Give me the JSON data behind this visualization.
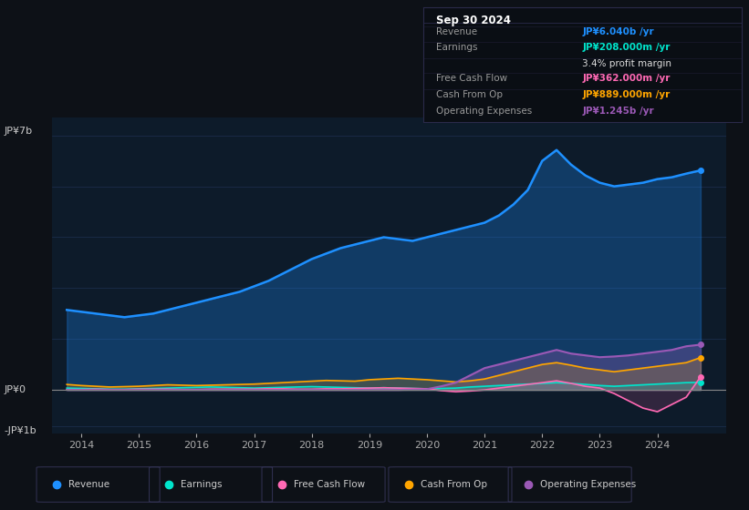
{
  "bg_color": "#0d1117",
  "plot_bg_color": "#0d1b2a",
  "grid_color": "#1e3050",
  "ylim": [
    -1200000000.0,
    7500000000.0
  ],
  "xlim": [
    2013.5,
    2025.2
  ],
  "xtick_years": [
    2014,
    2015,
    2016,
    2017,
    2018,
    2019,
    2020,
    2021,
    2022,
    2023,
    2024
  ],
  "legend_items": [
    {
      "label": "Revenue",
      "color": "#1e90ff"
    },
    {
      "label": "Earnings",
      "color": "#00e5cc"
    },
    {
      "label": "Free Cash Flow",
      "color": "#ff69b4"
    },
    {
      "label": "Cash From Op",
      "color": "#ffa500"
    },
    {
      "label": "Operating Expenses",
      "color": "#9b59b6"
    }
  ],
  "info_box": {
    "title": "Sep 30 2024",
    "rows": [
      {
        "label": "Revenue",
        "value": "JP¥6.040b /yr",
        "value_color": "#1e90ff"
      },
      {
        "label": "Earnings",
        "value": "JP¥208.000m /yr",
        "value_color": "#00e5cc"
      },
      {
        "label": "",
        "value": "3.4% profit margin",
        "value_color": "#dddddd"
      },
      {
        "label": "Free Cash Flow",
        "value": "JP¥362.000m /yr",
        "value_color": "#ff69b4"
      },
      {
        "label": "Cash From Op",
        "value": "JP¥889.000m /yr",
        "value_color": "#ffa500"
      },
      {
        "label": "Operating Expenses",
        "value": "JP¥1.245b /yr",
        "value_color": "#9b59b6"
      }
    ]
  },
  "revenue": {
    "color": "#1e90ff",
    "x": [
      2013.75,
      2014.0,
      2014.25,
      2014.5,
      2014.75,
      2015.0,
      2015.25,
      2015.5,
      2015.75,
      2016.0,
      2016.25,
      2016.5,
      2016.75,
      2017.0,
      2017.25,
      2017.5,
      2017.75,
      2018.0,
      2018.25,
      2018.5,
      2018.75,
      2019.0,
      2019.25,
      2019.5,
      2019.75,
      2020.0,
      2020.25,
      2020.5,
      2020.75,
      2021.0,
      2021.25,
      2021.5,
      2021.75,
      2022.0,
      2022.25,
      2022.5,
      2022.75,
      2023.0,
      2023.25,
      2023.5,
      2023.75,
      2024.0,
      2024.25,
      2024.5,
      2024.75
    ],
    "y": [
      2200000000.0,
      2150000000.0,
      2100000000.0,
      2050000000.0,
      2000000000.0,
      2050000000.0,
      2100000000.0,
      2200000000.0,
      2300000000.0,
      2400000000.0,
      2500000000.0,
      2600000000.0,
      2700000000.0,
      2850000000.0,
      3000000000.0,
      3200000000.0,
      3400000000.0,
      3600000000.0,
      3750000000.0,
      3900000000.0,
      4000000000.0,
      4100000000.0,
      4200000000.0,
      4150000000.0,
      4100000000.0,
      4200000000.0,
      4300000000.0,
      4400000000.0,
      4500000000.0,
      4600000000.0,
      4800000000.0,
      5100000000.0,
      5500000000.0,
      6300000000.0,
      6600000000.0,
      6200000000.0,
      5900000000.0,
      5700000000.0,
      5600000000.0,
      5650000000.0,
      5700000000.0,
      5800000000.0,
      5850000000.0,
      5950000000.0,
      6040000000.0
    ]
  },
  "earnings": {
    "color": "#00e5cc",
    "x": [
      2013.75,
      2014.0,
      2014.25,
      2014.5,
      2014.75,
      2015.0,
      2015.25,
      2015.5,
      2015.75,
      2016.0,
      2016.25,
      2016.5,
      2016.75,
      2017.0,
      2017.25,
      2017.5,
      2017.75,
      2018.0,
      2018.25,
      2018.5,
      2018.75,
      2019.0,
      2019.25,
      2019.5,
      2019.75,
      2020.0,
      2020.25,
      2020.5,
      2020.75,
      2021.0,
      2021.25,
      2021.5,
      2021.75,
      2022.0,
      2022.25,
      2022.5,
      2022.75,
      2023.0,
      2023.25,
      2023.5,
      2023.75,
      2024.0,
      2024.25,
      2024.5,
      2024.75
    ],
    "y": [
      50000000.0,
      40000000.0,
      30000000.0,
      20000000.0,
      20000000.0,
      30000000.0,
      40000000.0,
      50000000.0,
      60000000.0,
      70000000.0,
      80000000.0,
      70000000.0,
      60000000.0,
      50000000.0,
      60000000.0,
      70000000.0,
      80000000.0,
      90000000.0,
      80000000.0,
      70000000.0,
      60000000.0,
      50000000.0,
      60000000.0,
      50000000.0,
      40000000.0,
      30000000.0,
      40000000.0,
      50000000.0,
      80000000.0,
      100000000.0,
      120000000.0,
      140000000.0,
      160000000.0,
      180000000.0,
      200000000.0,
      180000000.0,
      150000000.0,
      120000000.0,
      100000000.0,
      120000000.0,
      140000000.0,
      160000000.0,
      180000000.0,
      200000000.0,
      208000000.0
    ]
  },
  "free_cash_flow": {
    "color": "#ff69b4",
    "x": [
      2013.75,
      2014.0,
      2014.25,
      2014.5,
      2014.75,
      2015.0,
      2015.25,
      2015.5,
      2015.75,
      2016.0,
      2016.25,
      2016.5,
      2016.75,
      2017.0,
      2017.25,
      2017.5,
      2017.75,
      2018.0,
      2018.25,
      2018.5,
      2018.75,
      2019.0,
      2019.25,
      2019.5,
      2019.75,
      2020.0,
      2020.25,
      2020.5,
      2020.75,
      2021.0,
      2021.25,
      2021.5,
      2021.75,
      2022.0,
      2022.25,
      2022.5,
      2022.75,
      2023.0,
      2023.25,
      2023.5,
      2023.75,
      2024.0,
      2024.25,
      2024.5,
      2024.75
    ],
    "y": [
      10000000.0,
      10000000.0,
      20000000.0,
      10000000.0,
      10000000.0,
      20000000.0,
      20000000.0,
      20000000.0,
      10000000.0,
      10000000.0,
      20000000.0,
      20000000.0,
      20000000.0,
      20000000.0,
      30000000.0,
      30000000.0,
      20000000.0,
      20000000.0,
      30000000.0,
      30000000.0,
      40000000.0,
      50000000.0,
      60000000.0,
      50000000.0,
      40000000.0,
      30000000.0,
      -20000000.0,
      -50000000.0,
      -30000000.0,
      0.0,
      50000000.0,
      100000000.0,
      150000000.0,
      200000000.0,
      250000000.0,
      180000000.0,
      100000000.0,
      50000000.0,
      -100000000.0,
      -300000000.0,
      -500000000.0,
      -600000000.0,
      -400000000.0,
      -200000000.0,
      362000000.0
    ]
  },
  "cash_from_op": {
    "color": "#ffa500",
    "x": [
      2013.75,
      2014.0,
      2014.25,
      2014.5,
      2014.75,
      2015.0,
      2015.25,
      2015.5,
      2015.75,
      2016.0,
      2016.25,
      2016.5,
      2016.75,
      2017.0,
      2017.25,
      2017.5,
      2017.75,
      2018.0,
      2018.25,
      2018.5,
      2018.75,
      2019.0,
      2019.25,
      2019.5,
      2019.75,
      2020.0,
      2020.25,
      2020.5,
      2020.75,
      2021.0,
      2021.25,
      2021.5,
      2021.75,
      2022.0,
      2022.25,
      2022.5,
      2022.75,
      2023.0,
      2023.25,
      2023.5,
      2023.75,
      2024.0,
      2024.25,
      2024.5,
      2024.75
    ],
    "y": [
      150000000.0,
      120000000.0,
      100000000.0,
      80000000.0,
      90000000.0,
      100000000.0,
      120000000.0,
      140000000.0,
      130000000.0,
      120000000.0,
      130000000.0,
      140000000.0,
      150000000.0,
      160000000.0,
      180000000.0,
      200000000.0,
      220000000.0,
      240000000.0,
      260000000.0,
      250000000.0,
      240000000.0,
      280000000.0,
      300000000.0,
      320000000.0,
      300000000.0,
      280000000.0,
      250000000.0,
      220000000.0,
      250000000.0,
      300000000.0,
      400000000.0,
      500000000.0,
      600000000.0,
      700000000.0,
      750000000.0,
      680000000.0,
      600000000.0,
      550000000.0,
      500000000.0,
      550000000.0,
      600000000.0,
      650000000.0,
      700000000.0,
      750000000.0,
      889000000.0
    ]
  },
  "operating_expenses": {
    "color": "#9b59b6",
    "x": [
      2013.75,
      2014.0,
      2014.25,
      2014.5,
      2014.75,
      2015.0,
      2015.25,
      2015.5,
      2015.75,
      2016.0,
      2016.25,
      2016.5,
      2016.75,
      2017.0,
      2017.25,
      2017.5,
      2017.75,
      2018.0,
      2018.25,
      2018.5,
      2018.75,
      2019.0,
      2019.25,
      2019.5,
      2019.75,
      2020.0,
      2020.25,
      2020.5,
      2020.75,
      2021.0,
      2021.25,
      2021.5,
      2021.75,
      2022.0,
      2022.25,
      2022.5,
      2022.75,
      2023.0,
      2023.25,
      2023.5,
      2023.75,
      2024.0,
      2024.25,
      2024.5,
      2024.75
    ],
    "y": [
      0.0,
      0.0,
      0.0,
      0.0,
      0.0,
      0.0,
      0.0,
      0.0,
      0.0,
      0.0,
      0.0,
      0.0,
      0.0,
      0.0,
      0.0,
      0.0,
      0.0,
      0.0,
      0.0,
      0.0,
      0.0,
      0.0,
      0.0,
      0.0,
      10000000.0,
      20000000.0,
      100000000.0,
      200000000.0,
      400000000.0,
      600000000.0,
      700000000.0,
      800000000.0,
      900000000.0,
      1000000000.0,
      1100000000.0,
      1000000000.0,
      950000000.0,
      900000000.0,
      920000000.0,
      950000000.0,
      1000000000.0,
      1050000000.0,
      1100000000.0,
      1200000000.0,
      1245000000.0
    ]
  }
}
